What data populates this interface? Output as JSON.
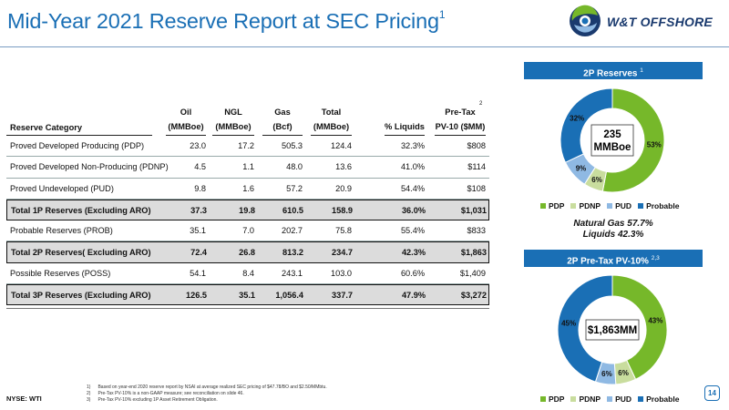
{
  "title": {
    "text": "Mid-Year 2021 Reserve Report at SEC Pricing",
    "sup": "1"
  },
  "logo": {
    "text": "W&T OFFSHORE",
    "icon": "wt-swirl-icon"
  },
  "table": {
    "header": {
      "category": "Reserve Category",
      "oil": [
        "Oil",
        "(MMBoe)"
      ],
      "ngl": [
        "NGL",
        "(MMBoe)"
      ],
      "gas": [
        "Gas",
        "(Bcf)"
      ],
      "total": [
        "Total",
        "(MMBoe)"
      ],
      "liquids": [
        "",
        "% Liquids"
      ],
      "pv": [
        "Pre-Tax",
        "PV-10 ($MM)"
      ],
      "pv_sup": "2"
    },
    "rows": [
      {
        "label": "Proved Developed Producing (PDP)",
        "oil": "23.0",
        "ngl": "17.2",
        "gas": "505.3",
        "total": "124.4",
        "liquids": "32.3%",
        "pv": "$808"
      },
      {
        "label": "Proved Developed Non-Producing (PDNP)",
        "oil": "4.5",
        "ngl": "1.1",
        "gas": "48.0",
        "total": "13.6",
        "liquids": "41.0%",
        "pv": "$114"
      },
      {
        "label": "Proved Undeveloped (PUD)",
        "oil": "9.8",
        "ngl": "1.6",
        "gas": "57.2",
        "total": "20.9",
        "liquids": "54.4%",
        "pv": "$108"
      },
      {
        "label": "Total 1P Reserves (Excluding ARO)",
        "oil": "37.3",
        "ngl": "19.8",
        "gas": "610.5",
        "total": "158.9",
        "liquids": "36.0%",
        "pv": "$1,031"
      },
      {
        "label": "Probable Reserves (PROB)",
        "oil": "35.1",
        "ngl": "7.0",
        "gas": "202.7",
        "total": "75.8",
        "liquids": "55.4%",
        "pv": "$833"
      },
      {
        "label": "Total 2P Reserves( Excluding ARO)",
        "oil": "72.4",
        "ngl": "26.8",
        "gas": "813.2",
        "total": "234.7",
        "liquids": "42.3%",
        "pv": "$1,863"
      },
      {
        "label": "Possible Reserves (POSS)",
        "oil": "54.1",
        "ngl": "8.4",
        "gas": "243.1",
        "total": "103.0",
        "liquids": "60.6%",
        "pv": "$1,409"
      },
      {
        "label": "Total 3P Reserves (Excluding ARO)",
        "oil": "126.5",
        "ngl": "35.1",
        "gas": "1,056.4",
        "total": "337.7",
        "liquids": "47.9%",
        "pv": "$3,272"
      }
    ]
  },
  "colors": {
    "pdp": "#76b82a",
    "pdnp": "#c9dd9e",
    "pud": "#8fb9e3",
    "probable": "#1a6fb5",
    "brand": "#1a6fb5"
  },
  "reserves_panel": {
    "title": "2P Reserves",
    "sup": "1",
    "center_value": "235",
    "center_unit": "MMBoe"
  },
  "pv_panel": {
    "title": "2P Pre-Tax PV-10%",
    "sup": "2,3",
    "center_value": "$1,863MM"
  },
  "legend": [
    "PDP",
    "PDNP",
    "PUD",
    "Probable"
  ],
  "note": {
    "line1": "Natural Gas 57.7%",
    "line2": "Liquids 42.3%"
  },
  "chart_data": [
    {
      "type": "pie",
      "title": "2P Reserves",
      "categories": [
        "PDP",
        "PDNP",
        "PUD",
        "Probable"
      ],
      "values": [
        53,
        6,
        9,
        32
      ],
      "labels": [
        "53%",
        "6%",
        "9%",
        "32%"
      ]
    },
    {
      "type": "pie",
      "title": "2P Pre-Tax PV-10%",
      "categories": [
        "PDP",
        "PDNP",
        "PUD",
        "Probable"
      ],
      "values": [
        43,
        6,
        6,
        45
      ],
      "labels": [
        "43%",
        "6%",
        "6%",
        "45%"
      ]
    }
  ],
  "footnotes": [
    {
      "num": "1)",
      "text": "Based on year-end 2020 reserve report by NSAI at average realized SEC pricing of $47.78/BO and $2.50/MMbtu."
    },
    {
      "num": "2)",
      "text": "Pre-Tax PV-10% is a non-GAAP measure; see reconciliation on slide 46."
    },
    {
      "num": "3)",
      "text": "Pre-Tax PV-10% excluding 1P Asset Retirement Obligation."
    }
  ],
  "ticker": "NYSE: WTI",
  "page_number": "14"
}
